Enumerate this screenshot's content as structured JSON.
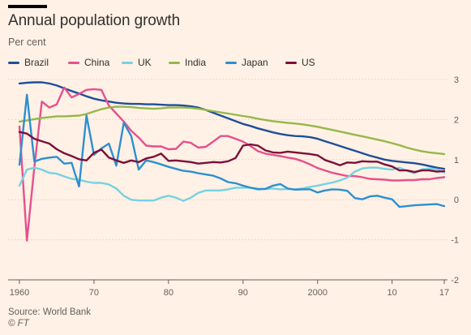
{
  "header": {
    "title": "Annual population growth",
    "subtitle": "Per cent"
  },
  "footer": {
    "source": "Source: World Bank",
    "credit": "© FT"
  },
  "chart_data": {
    "type": "line",
    "title": "Annual population growth",
    "subtitle": "Per cent",
    "xlabel": "",
    "ylabel": "",
    "xlim": [
      1960,
      2017
    ],
    "ylim": [
      -2,
      3
    ],
    "grid": true,
    "legend_position": "top",
    "x_ticks": [
      1960,
      1970,
      1980,
      1990,
      2000,
      2010,
      2017
    ],
    "x_tick_labels": [
      "1960",
      "70",
      "80",
      "90",
      "2000",
      "10",
      "17"
    ],
    "y_ticks": [
      -2,
      -1,
      0,
      1,
      2,
      3
    ],
    "y_tick_labels": [
      "-2",
      "-1",
      "0",
      "1",
      "2",
      "3"
    ],
    "x": [
      1960,
      1961,
      1962,
      1963,
      1964,
      1965,
      1966,
      1967,
      1968,
      1969,
      1970,
      1971,
      1972,
      1973,
      1974,
      1975,
      1976,
      1977,
      1978,
      1979,
      1980,
      1981,
      1982,
      1983,
      1984,
      1985,
      1986,
      1987,
      1988,
      1989,
      1990,
      1991,
      1992,
      1993,
      1994,
      1995,
      1996,
      1997,
      1998,
      1999,
      2000,
      2001,
      2002,
      2003,
      2004,
      2005,
      2006,
      2007,
      2008,
      2009,
      2010,
      2011,
      2012,
      2013,
      2014,
      2015,
      2016,
      2017
    ],
    "series": [
      {
        "name": "Brazil",
        "color": "#1F4E99",
        "values": [
          2.9,
          2.92,
          2.93,
          2.93,
          2.9,
          2.85,
          2.78,
          2.71,
          2.65,
          2.58,
          2.52,
          2.48,
          2.45,
          2.42,
          2.4,
          2.39,
          2.39,
          2.38,
          2.38,
          2.37,
          2.36,
          2.36,
          2.35,
          2.33,
          2.3,
          2.24,
          2.17,
          2.1,
          2.03,
          1.96,
          1.89,
          1.84,
          1.78,
          1.73,
          1.68,
          1.64,
          1.61,
          1.59,
          1.58,
          1.56,
          1.52,
          1.46,
          1.4,
          1.34,
          1.28,
          1.22,
          1.16,
          1.1,
          1.05,
          1.0,
          0.97,
          0.95,
          0.93,
          0.91,
          0.88,
          0.84,
          0.8,
          0.77
        ]
      },
      {
        "name": "China",
        "color": "#E6508E",
        "values": [
          1.83,
          -1.02,
          0.82,
          2.45,
          2.3,
          2.38,
          2.8,
          2.55,
          2.64,
          2.74,
          2.76,
          2.74,
          2.35,
          2.15,
          1.95,
          1.72,
          1.55,
          1.35,
          1.33,
          1.33,
          1.26,
          1.27,
          1.45,
          1.42,
          1.3,
          1.32,
          1.45,
          1.59,
          1.59,
          1.52,
          1.45,
          1.34,
          1.21,
          1.15,
          1.12,
          1.09,
          1.05,
          1.02,
          0.96,
          0.88,
          0.79,
          0.73,
          0.67,
          0.63,
          0.59,
          0.59,
          0.56,
          0.52,
          0.51,
          0.5,
          0.48,
          0.48,
          0.49,
          0.49,
          0.51,
          0.51,
          0.54,
          0.56
        ]
      },
      {
        "name": "UK",
        "color": "#76D2E0",
        "values": [
          0.35,
          0.75,
          0.8,
          0.75,
          0.67,
          0.65,
          0.58,
          0.52,
          0.5,
          0.45,
          0.42,
          0.42,
          0.38,
          0.28,
          0.1,
          0.0,
          -0.02,
          -0.02,
          -0.02,
          0.05,
          0.1,
          0.05,
          -0.03,
          0.05,
          0.17,
          0.23,
          0.23,
          0.23,
          0.26,
          0.3,
          0.3,
          0.3,
          0.25,
          0.27,
          0.28,
          0.26,
          0.27,
          0.26,
          0.28,
          0.32,
          0.35,
          0.39,
          0.43,
          0.48,
          0.55,
          0.7,
          0.78,
          0.8,
          0.8,
          0.77,
          0.75,
          0.8,
          0.72,
          0.66,
          0.76,
          0.78,
          0.76,
          0.68
        ]
      },
      {
        "name": "India",
        "color": "#96B849",
        "values": [
          1.95,
          1.98,
          2.01,
          2.04,
          2.06,
          2.08,
          2.08,
          2.09,
          2.1,
          2.14,
          2.2,
          2.26,
          2.3,
          2.32,
          2.32,
          2.31,
          2.29,
          2.28,
          2.27,
          2.28,
          2.3,
          2.3,
          2.3,
          2.29,
          2.27,
          2.24,
          2.21,
          2.18,
          2.15,
          2.12,
          2.09,
          2.06,
          2.02,
          1.99,
          1.96,
          1.94,
          1.92,
          1.9,
          1.88,
          1.85,
          1.82,
          1.78,
          1.74,
          1.7,
          1.66,
          1.62,
          1.58,
          1.54,
          1.5,
          1.46,
          1.41,
          1.36,
          1.3,
          1.25,
          1.21,
          1.18,
          1.16,
          1.14
        ]
      },
      {
        "name": "Japan",
        "color": "#2D8FD0",
        "values": [
          0.87,
          2.62,
          0.95,
          1.02,
          1.05,
          1.07,
          0.9,
          0.92,
          0.33,
          2.1,
          1.12,
          1.28,
          1.4,
          0.85,
          1.92,
          1.59,
          0.75,
          0.98,
          0.94,
          0.88,
          0.82,
          0.77,
          0.72,
          0.7,
          0.66,
          0.63,
          0.6,
          0.53,
          0.44,
          0.41,
          0.35,
          0.3,
          0.27,
          0.27,
          0.35,
          0.39,
          0.28,
          0.25,
          0.26,
          0.26,
          0.18,
          0.23,
          0.26,
          0.25,
          0.22,
          0.04,
          0.01,
          0.08,
          0.1,
          0.05,
          0.01,
          -0.18,
          -0.16,
          -0.14,
          -0.13,
          -0.12,
          -0.11,
          -0.16
        ]
      },
      {
        "name": "US",
        "color": "#7D0E3A",
        "values": [
          1.69,
          1.65,
          1.52,
          1.46,
          1.4,
          1.26,
          1.16,
          1.09,
          1.01,
          0.98,
          1.17,
          1.25,
          1.05,
          0.98,
          0.92,
          0.98,
          0.94,
          1.03,
          1.07,
          1.15,
          0.97,
          0.98,
          0.96,
          0.94,
          0.9,
          0.92,
          0.94,
          0.93,
          0.96,
          1.04,
          1.35,
          1.38,
          1.35,
          1.23,
          1.18,
          1.17,
          1.2,
          1.18,
          1.16,
          1.14,
          1.11,
          0.99,
          0.93,
          0.86,
          0.93,
          0.92,
          0.96,
          0.95,
          0.95,
          0.88,
          0.83,
          0.73,
          0.73,
          0.69,
          0.73,
          0.73,
          0.7,
          0.71
        ]
      }
    ]
  }
}
